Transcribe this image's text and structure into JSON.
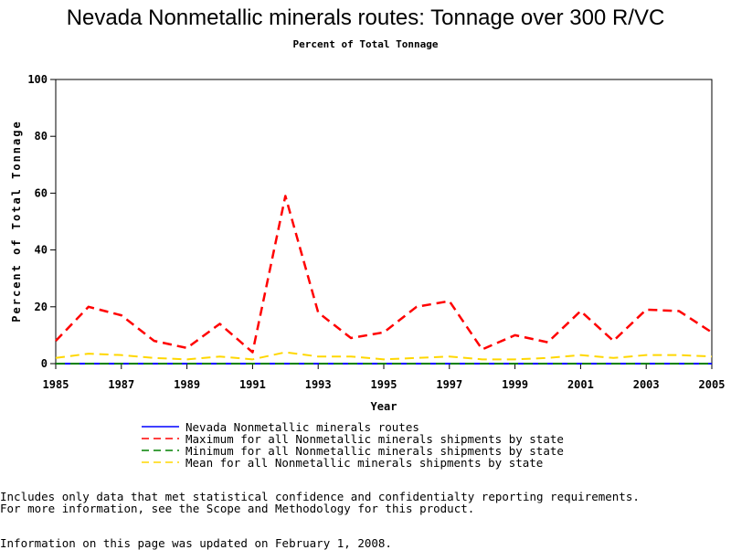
{
  "chart_data": {
    "type": "line",
    "title": "Nevada Nonmetallic minerals routes: Tonnage over 300 R/VC",
    "subtitle": "Percent of Total Tonnage",
    "xlabel": "Year",
    "ylabel": "Percent of Total Tonnage",
    "xlim": [
      1985,
      2005
    ],
    "ylim": [
      0,
      100
    ],
    "xticks": [
      "1985",
      "1987",
      "1989",
      "1991",
      "1993",
      "1995",
      "1997",
      "1999",
      "2001",
      "2003",
      "2005"
    ],
    "yticks": [
      "0",
      "20",
      "40",
      "60",
      "80",
      "100"
    ],
    "grid": false,
    "legend_position": "bottom",
    "x": [
      1985,
      1986,
      1987,
      1988,
      1989,
      1990,
      1991,
      1992,
      1993,
      1994,
      1995,
      1996,
      1997,
      1998,
      1999,
      2000,
      2001,
      2002,
      2003,
      2004,
      2005
    ],
    "series": [
      {
        "name": "Nevada Nonmetallic minerals routes",
        "color": "#0000ff",
        "style": "solid",
        "values": [
          0,
          0,
          0,
          0,
          0,
          0,
          0,
          0,
          0,
          0,
          0,
          0,
          0,
          0,
          0,
          0,
          0,
          0,
          0,
          0,
          0
        ]
      },
      {
        "name": "Maximum for all Nonmetallic minerals shipments by state",
        "color": "#ff0000",
        "style": "dashed",
        "values": [
          8,
          20,
          17,
          8,
          5.5,
          14,
          4,
          59,
          18,
          9,
          11,
          20,
          22,
          5,
          10,
          7.5,
          18.5,
          8,
          19,
          18.5,
          11
        ]
      },
      {
        "name": "Minimum for all Nonmetallic minerals shipments by state",
        "color": "#008000",
        "style": "dashed",
        "values": [
          0,
          0,
          0,
          0,
          0,
          0,
          0,
          0,
          0,
          0,
          0,
          0,
          0,
          0,
          0,
          0,
          0,
          0,
          0,
          0,
          0
        ]
      },
      {
        "name": "Mean for all Nonmetallic minerals shipments by state",
        "color": "#ffd700",
        "style": "dashed",
        "values": [
          2,
          3.5,
          3,
          2,
          1.5,
          2.5,
          1.5,
          4,
          2.5,
          2.5,
          1.5,
          2,
          2.5,
          1.5,
          1.5,
          2,
          3,
          2,
          3,
          3,
          2.5
        ]
      }
    ]
  },
  "notes": {
    "line1": "Includes only data that met statistical confidence and confidentialty reporting requirements.",
    "line2": "For more information, see the Scope and Methodology for this product.",
    "line3": "Information on this page was updated on February 1, 2008."
  }
}
